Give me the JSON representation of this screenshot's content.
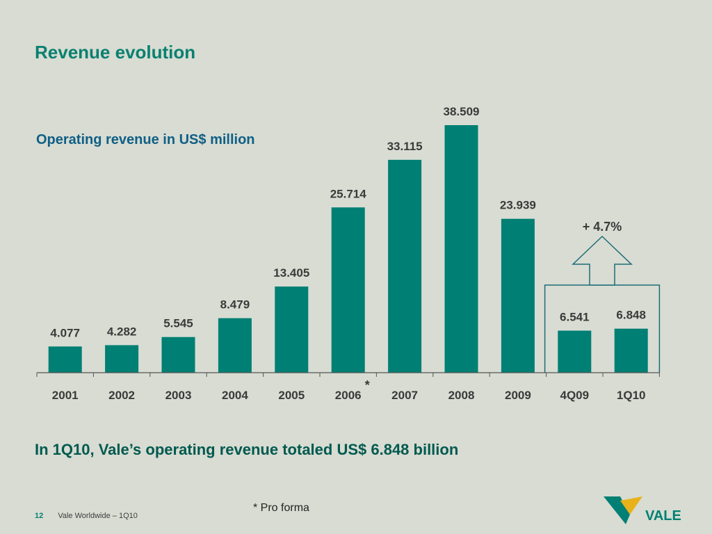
{
  "page": {
    "title": "Revenue evolution",
    "summary": "In 1Q10, Vale’s operating revenue totaled US$ 6.848 billion",
    "footnote": "* Pro forma",
    "page_number": "12",
    "footer_text": "Vale Worldwide – 1Q10",
    "logo_text": "VALE"
  },
  "chart_data": {
    "type": "bar",
    "title": "Operating revenue in US$ million",
    "categories": [
      "2001",
      "2002",
      "2003",
      "2004",
      "2005",
      "2006",
      "2007",
      "2008",
      "2009",
      "4Q09",
      "1Q10"
    ],
    "values": [
      4077,
      4282,
      5545,
      8479,
      13405,
      25714,
      33115,
      38509,
      23939,
      6541,
      6848
    ],
    "value_labels": [
      "4.077",
      "4.282",
      "5.545",
      "8.479",
      "13.405",
      "25.714",
      "33.115",
      "38.509",
      "23.939",
      "6.541",
      "6.848"
    ],
    "asterisk": "*",
    "asterisk_category": "2006",
    "growth_annotation": "+ 4.7%",
    "bar_color": "#007f74",
    "grid": false,
    "legend": "none"
  }
}
